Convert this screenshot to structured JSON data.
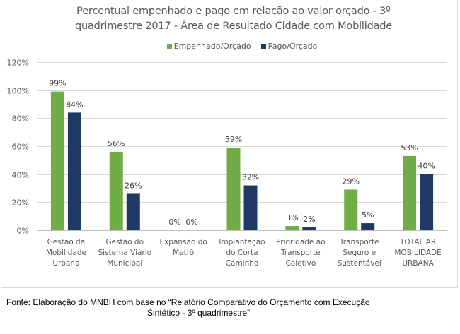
{
  "chart_data": {
    "type": "bar",
    "title_lines": [
      "Percentual empenhado  e pago em  relação ao valor orçado  - 3º",
      "quadrimestre  2017 - Área de Resultado Cidade com Mobilidade"
    ],
    "categories": [
      [
        "Gestão da",
        "Mobilidade",
        "Urbana"
      ],
      [
        "Gestão do",
        "Sistema Viário",
        "Municipal"
      ],
      [
        "Expansão do",
        "Metrô"
      ],
      [
        "Implantação",
        "do Corta",
        "Caminho"
      ],
      [
        "Prioridade ao",
        "Transporte",
        "Coletivo"
      ],
      [
        "Transporte",
        "Seguro e",
        "Sustentável"
      ],
      [
        "TOTAL AR",
        "MOBILIDADE",
        "URBANA"
      ]
    ],
    "series": [
      {
        "name": "Empenhado/Orçado",
        "color": "#70AD47",
        "values": [
          99,
          56,
          0,
          59,
          3,
          29,
          53
        ],
        "labels": [
          "99%",
          "56%",
          "0%",
          "59%",
          "3%",
          "29%",
          "53%"
        ]
      },
      {
        "name": "Pago/Orçado",
        "color": "#1F3864",
        "values": [
          84,
          26,
          0,
          32,
          2,
          5,
          40
        ],
        "labels": [
          "84%",
          "26%",
          "0%",
          "32%",
          "2%",
          "5%",
          "40%"
        ]
      }
    ],
    "yticks": [
      "0%",
      "20%",
      "40%",
      "60%",
      "80%",
      "100%",
      "120%"
    ],
    "ytick_values": [
      0,
      20,
      40,
      60,
      80,
      100,
      120
    ],
    "ylim": [
      0,
      120
    ],
    "xlabel": "",
    "ylabel": "",
    "grid": true,
    "legend_position": "top"
  },
  "source": {
    "line1": "Fonte: Elaboração do MNBH com base no “Relatório Comparativo do Orçamento com Execução",
    "line2": "Sintético - 3º quadrimestre”"
  }
}
